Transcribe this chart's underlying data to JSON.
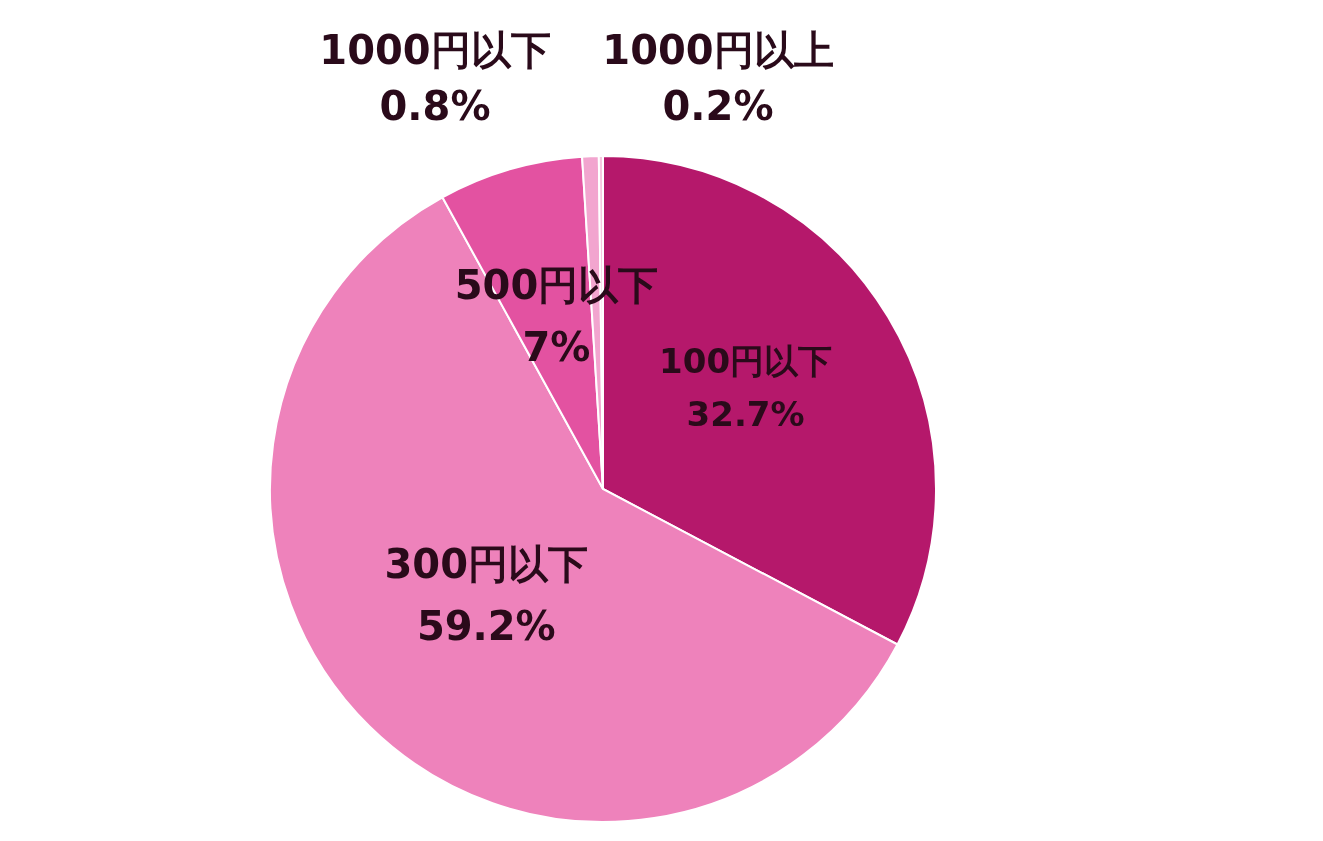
{
  "chart_data": {
    "type": "pie",
    "categories": [
      "100円以下",
      "300円以下",
      "500円以下",
      "1000円以下",
      "1000円以上"
    ],
    "values": [
      32.7,
      59.2,
      7,
      0.8,
      0.2
    ],
    "value_labels": [
      "32.7%",
      "59.2%",
      "7%",
      "0.8%",
      "0.2%"
    ],
    "colors": [
      "#b5186b",
      "#ee82bb",
      "#e352a1",
      "#f2a5cf",
      "#f7c6df"
    ],
    "legend": false
  }
}
